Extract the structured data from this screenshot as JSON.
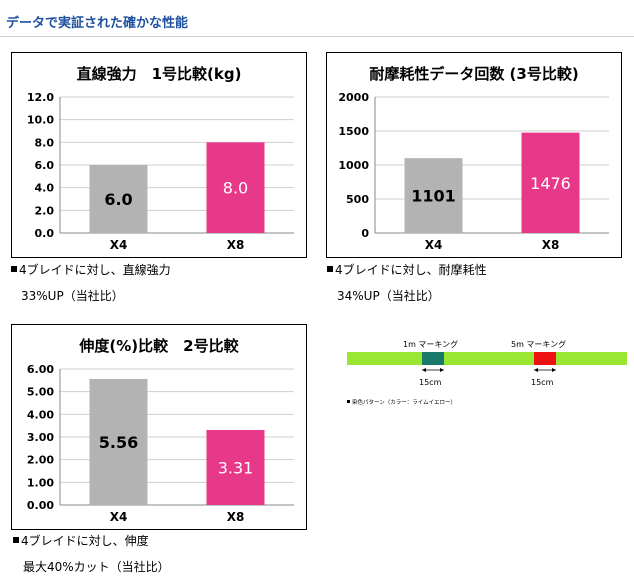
{
  "page": {
    "heading": "データで実証された確かな性能"
  },
  "chart_data": [
    {
      "type": "bar",
      "title": "直線強力　1号比較(kg)",
      "categories": [
        "X4",
        "X8"
      ],
      "values": [
        6.0,
        8.0
      ],
      "value_labels": [
        "6.0",
        "8.0"
      ],
      "bar_colors": [
        "#b3b3b3",
        "#e8388a"
      ],
      "ylim": [
        0,
        12
      ],
      "yticks": [
        "0.0",
        "2.0",
        "4.0",
        "6.0",
        "8.0",
        "10.0",
        "12.0"
      ],
      "grid": true
    },
    {
      "type": "bar",
      "title": "耐摩耗性データ回数 (3号比較)",
      "categories": [
        "X4",
        "X8"
      ],
      "values": [
        1101,
        1476
      ],
      "value_labels": [
        "1101",
        "1476"
      ],
      "bar_colors": [
        "#b3b3b3",
        "#e8388a"
      ],
      "ylim": [
        0,
        2000
      ],
      "yticks": [
        "0",
        "500",
        "1000",
        "1500",
        "2000"
      ],
      "grid": true
    },
    {
      "type": "bar",
      "title": "伸度(%)比較　2号比較",
      "categories": [
        "X4",
        "X8"
      ],
      "values": [
        5.56,
        3.31
      ],
      "value_labels": [
        "5.56",
        "3.31"
      ],
      "bar_colors": [
        "#b3b3b3",
        "#e8388a"
      ],
      "ylim": [
        0,
        6
      ],
      "yticks": [
        "0.00",
        "1.00",
        "2.00",
        "3.00",
        "4.00",
        "5.00",
        "6.00"
      ],
      "grid": true
    }
  ],
  "notes": [
    {
      "line1": "4ブレイドに対し、直線強力",
      "line2": "33%UP（当社比）"
    },
    {
      "line1": "4ブレイドに対し、耐摩耗性",
      "line2": "34%UP（当社比）"
    },
    {
      "line1": "4ブレイドに対し、伸度",
      "line2": "最大40%カット（当社比）"
    }
  ],
  "line_diagram": {
    "line_color": "#99e633",
    "marks": [
      {
        "label": "1m マーキング",
        "color": "#1a7a6a",
        "length": "15cm"
      },
      {
        "label": "5m マーキング",
        "color": "#ee1111",
        "length": "15cm"
      }
    ],
    "caption": "染色パターン（カラー：ライムイエロー）"
  }
}
